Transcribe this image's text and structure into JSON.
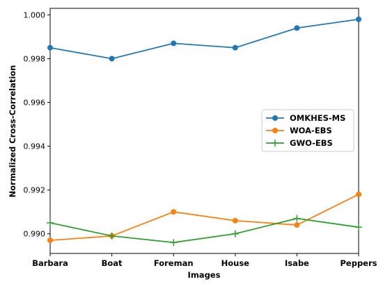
{
  "chart_data": {
    "type": "line",
    "categories": [
      "Barbara",
      "Boat",
      "Foreman",
      "House",
      "Isabe",
      "Peppers"
    ],
    "xlabel": "Images",
    "ylabel": "Normalized Cross-Correlation",
    "ylim": [
      0.9891,
      1.0003
    ],
    "yticks": [
      "0.990",
      "0.992",
      "0.994",
      "0.996",
      "0.998",
      "1.000"
    ],
    "grid": false,
    "legend_position": "center-right",
    "series": [
      {
        "name": "OMKHES-MS",
        "color": "#1f77b4",
        "marker": "circle",
        "values": [
          0.9985,
          0.998,
          0.9987,
          0.9985,
          0.9994,
          0.9998
        ]
      },
      {
        "name": "WOA-EBS",
        "color": "#ff7f0e",
        "marker": "circle",
        "values": [
          0.9897,
          0.9899,
          0.991,
          0.9906,
          0.9904,
          0.9918
        ]
      },
      {
        "name": "GWO-EBS",
        "color": "#2ca02c",
        "marker": "plus",
        "values": [
          0.9905,
          0.9899,
          0.9896,
          0.99,
          0.9907,
          0.9903
        ]
      }
    ]
  }
}
